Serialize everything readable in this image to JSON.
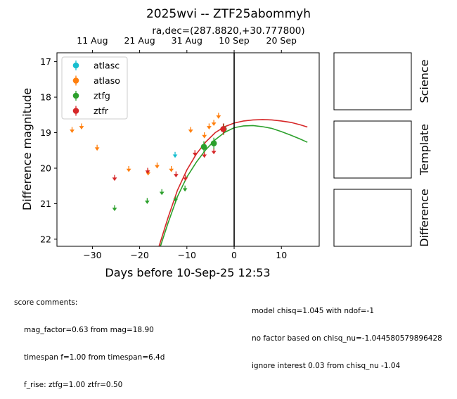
{
  "chart_data": {
    "type": "scatter",
    "title": "2025wvi -- ZTF25abommyh",
    "subtitle": "ra,dec=(287.8820,+30.777800)",
    "xlabel": "Days before 10-Sep-25 12:53",
    "ylabel": "Difference magnitude",
    "xlim": [
      -37.5,
      18
    ],
    "ylim": [
      22.2,
      16.75
    ],
    "y_inverted": true,
    "xticks": [
      -30,
      -20,
      -10,
      0,
      10
    ],
    "xtick_labels": [
      "−30",
      "−20",
      "−10",
      "0",
      "10"
    ],
    "yticks": [
      17,
      18,
      19,
      20,
      21,
      22
    ],
    "ytick_labels": [
      "17",
      "18",
      "19",
      "20",
      "21",
      "22"
    ],
    "top_axis": {
      "ticks": [
        -30,
        -20,
        -10,
        0,
        10
      ],
      "labels": [
        "11 Aug",
        "21 Aug",
        "31 Aug",
        "10 Sep",
        "20 Sep"
      ]
    },
    "vline_x": 0,
    "legend_position": "top-left",
    "series": [
      {
        "name": "atlasc",
        "color": "#17becf",
        "detections": [],
        "upper_limits": [
          [
            -12.5,
            19.6
          ]
        ]
      },
      {
        "name": "atlaso",
        "color": "#ff7f0e",
        "detections": [],
        "upper_limits": [
          [
            -34.3,
            18.9
          ],
          [
            -32.3,
            18.8
          ],
          [
            -29.0,
            19.4
          ],
          [
            -22.3,
            20.0
          ],
          [
            -18.2,
            20.1
          ],
          [
            -16.3,
            19.9
          ],
          [
            -13.3,
            20.0
          ],
          [
            -9.2,
            18.9
          ],
          [
            -6.3,
            19.05
          ],
          [
            -5.3,
            18.8
          ],
          [
            -4.3,
            18.7
          ],
          [
            -3.3,
            18.5
          ]
        ]
      },
      {
        "name": "ztfg",
        "color": "#2ca02c",
        "detections": [
          [
            -6.4,
            19.4
          ],
          [
            -4.3,
            19.3
          ],
          [
            -2.2,
            18.9
          ]
        ],
        "upper_limits": [
          [
            -25.3,
            21.1
          ],
          [
            -18.4,
            20.9
          ],
          [
            -15.3,
            20.65
          ],
          [
            -12.4,
            20.85
          ],
          [
            -10.4,
            20.55
          ]
        ],
        "model_curve": [
          [
            -15.6,
            22.2
          ],
          [
            -14.0,
            21.55
          ],
          [
            -12.0,
            20.8
          ],
          [
            -10.0,
            20.25
          ],
          [
            -8.0,
            19.83
          ],
          [
            -6.0,
            19.48
          ],
          [
            -4.0,
            19.2
          ],
          [
            -2.0,
            18.99
          ],
          [
            0.0,
            18.86
          ],
          [
            2.0,
            18.81
          ],
          [
            4.0,
            18.8
          ],
          [
            6.0,
            18.83
          ],
          [
            8.0,
            18.88
          ],
          [
            10.0,
            18.97
          ],
          [
            12.0,
            19.07
          ],
          [
            14.0,
            19.18
          ],
          [
            15.5,
            19.27
          ]
        ]
      },
      {
        "name": "ztfr",
        "color": "#d62728",
        "detections": [
          [
            -2.3,
            18.9
          ]
        ],
        "upper_limits": [
          [
            -25.3,
            20.25
          ],
          [
            -18.3,
            20.05
          ],
          [
            -12.3,
            20.15
          ],
          [
            -10.3,
            20.25
          ],
          [
            -8.3,
            19.55
          ],
          [
            -6.3,
            19.6
          ],
          [
            -4.3,
            19.5
          ]
        ],
        "model_curve": [
          [
            -15.9,
            22.2
          ],
          [
            -14.0,
            21.4
          ],
          [
            -12.0,
            20.62
          ],
          [
            -10.0,
            20.05
          ],
          [
            -8.0,
            19.6
          ],
          [
            -6.0,
            19.26
          ],
          [
            -4.0,
            19.0
          ],
          [
            -2.0,
            18.83
          ],
          [
            0.0,
            18.73
          ],
          [
            2.0,
            18.67
          ],
          [
            4.0,
            18.64
          ],
          [
            6.0,
            18.63
          ],
          [
            8.0,
            18.64
          ],
          [
            10.0,
            18.67
          ],
          [
            12.0,
            18.71
          ],
          [
            14.0,
            18.78
          ],
          [
            15.5,
            18.84
          ]
        ]
      }
    ],
    "side_panels": [
      "Science",
      "Template",
      "Difference"
    ]
  },
  "comments": {
    "header": "score comments:",
    "left_lines": [
      "mag_factor=0.63 from mag=18.90",
      "timespan f=1.00 from timespan=6.4d",
      "f_rise: ztfg=1.00 ztfr=0.50"
    ],
    "right_lines": [
      "model chisq=1.045 with ndof=-1",
      "no factor based on chisq_nu=-1.044580579896428",
      "ignore interest 0.03 from chisq_nu -1.04"
    ]
  }
}
